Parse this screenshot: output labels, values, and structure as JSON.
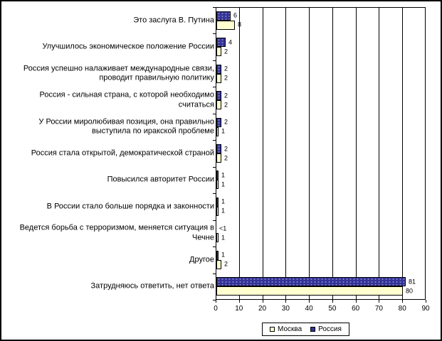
{
  "window": {
    "background_color": "#ffffff",
    "border_color": "#000000"
  },
  "chart_data": {
    "type": "bar",
    "orientation": "horizontal",
    "title": "",
    "xlabel": "",
    "ylabel": "",
    "xlim": [
      0,
      90
    ],
    "x_ticks": [
      0,
      10,
      20,
      30,
      40,
      50,
      60,
      70,
      80,
      90
    ],
    "grid": true,
    "legend_position": "bottom",
    "bar_border_color": "#000000",
    "gridline_color": "#000000",
    "categories": [
      "Это заслуга В. Путина",
      "Улучшилось экономическое положение России",
      "Россия успешно налаживает международные связи, проводит правильную политику",
      "Россия - сильная страна, с которой необходимо считаться",
      "У России миролюбивая позиция, она правильно выступила по иракской проблеме",
      "Россия стала открытой, демократической страной",
      "Повысился авторитет России",
      "В России стало больше порядка и законности",
      "Ведется борьба с терроризмом, меняется ситуация в Чечне",
      "Другое",
      "Затрудняюсь ответить, нет ответа"
    ],
    "series": [
      {
        "name": "Россия",
        "color": "#333399",
        "value_labels": [
          "6",
          "4",
          "2",
          "2",
          "2",
          "2",
          "1",
          "1",
          "<1",
          "1",
          "81"
        ],
        "values": [
          6,
          4,
          2,
          2,
          2,
          2,
          1,
          1,
          0,
          1,
          81
        ]
      },
      {
        "name": "Москва",
        "color": "#ffffcc",
        "value_labels": [
          "8",
          "2",
          "2",
          "2",
          "1",
          "2",
          "1",
          "1",
          "1",
          "2",
          "80"
        ],
        "values": [
          8,
          2,
          2,
          2,
          1,
          2,
          1,
          1,
          1,
          2,
          80
        ]
      }
    ]
  },
  "legend": {
    "items": [
      {
        "label": "Москва",
        "color": "#ffffcc"
      },
      {
        "label": "Россия",
        "color": "#333399"
      }
    ]
  }
}
